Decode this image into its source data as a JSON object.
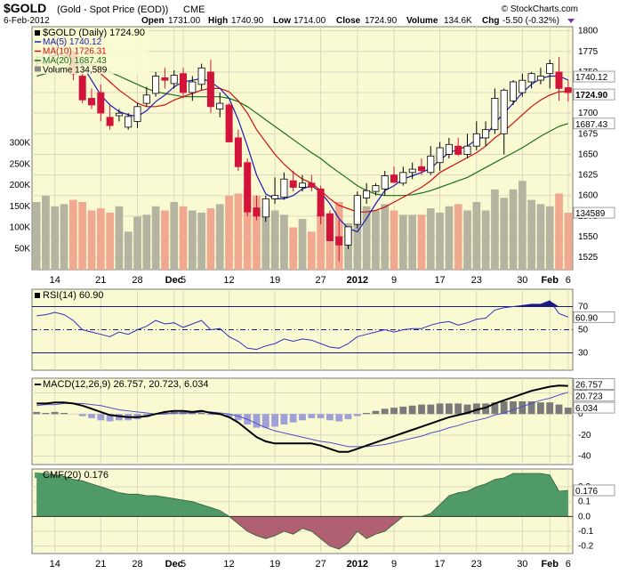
{
  "header": {
    "symbol": "$GOLD",
    "description": "(Gold - Spot Price (EOD))",
    "exchange": "CME",
    "copyright": "© StockCharts.com",
    "date": "6-Feb-2012",
    "ohlc_line": {
      "open_label": "Open",
      "open": "1731.00",
      "high_label": "High",
      "high": "1740.90",
      "low_label": "Low",
      "low": "1714.00",
      "close_label": "Close",
      "close": "1724.90",
      "volume_label": "Volume",
      "volume": "134.6K",
      "chg_label": "Chg",
      "chg": "-5.50 (-0.32%)"
    }
  },
  "colors": {
    "panel_bg": "#fafad2",
    "up": "#ffffff",
    "down": "#d2143a",
    "ma5": "#1a1ab4",
    "ma10": "#cc1111",
    "ma20": "#1a701a",
    "vol_up": "#b4b4a0",
    "vol_down": "#f0a890",
    "rsi": "#3030c0",
    "macd": "#000000",
    "signal": "#5050c8",
    "hist": "#7a7a7a",
    "hist_neg": "#a0a0d8",
    "cmf_pos": "#4f9a66",
    "cmf_neg": "#b06070"
  },
  "chart_data": [
    {
      "type": "candlestick",
      "title": "$GOLD (Daily) 1724.90",
      "x": [
        "Nov 10",
        "Nov 11",
        "Nov 14",
        "Nov 15",
        "Nov 16",
        "Nov 17",
        "Nov 18",
        "Nov 21",
        "Nov 22",
        "Nov 23",
        "Nov 25",
        "Nov 28",
        "Nov 29",
        "Nov 30",
        "Dec 1",
        "Dec 2",
        "Dec 5",
        "Dec 6",
        "Dec 7",
        "Dec 8",
        "Dec 9",
        "Dec 12",
        "Dec 13",
        "Dec 14",
        "Dec 15",
        "Dec 16",
        "Dec 19",
        "Dec 20",
        "Dec 21",
        "Dec 22",
        "Dec 23",
        "Dec 27",
        "Dec 28",
        "Dec 29",
        "Dec 30",
        "Jan 3",
        "Jan 4",
        "Jan 5",
        "Jan 6",
        "Jan 9",
        "Jan 10",
        "Jan 11",
        "Jan 12",
        "Jan 13",
        "Jan 17",
        "Jan 18",
        "Jan 19",
        "Jan 20",
        "Jan 23",
        "Jan 24",
        "Jan 25",
        "Jan 26",
        "Jan 27",
        "Jan 30",
        "Jan 31",
        "Feb 1",
        "Feb 2",
        "Feb 3",
        "Feb 6"
      ],
      "open": [
        1763,
        1760,
        1780,
        1770,
        1775,
        1745,
        1718,
        1725,
        1695,
        1697,
        1683,
        1690,
        1712,
        1724,
        1743,
        1736,
        1748,
        1725,
        1735,
        1750,
        1705,
        1710,
        1670,
        1640,
        1585,
        1574,
        1596,
        1598,
        1618,
        1610,
        1615,
        1608,
        1578,
        1550,
        1540,
        1565,
        1597,
        1605,
        1608,
        1625,
        1615,
        1628,
        1635,
        1628,
        1640,
        1650,
        1660,
        1650,
        1660,
        1670,
        1680,
        1675,
        1715,
        1725,
        1738,
        1740,
        1748,
        1750,
        1731
      ],
      "high": [
        1770,
        1775,
        1795,
        1790,
        1780,
        1752,
        1730,
        1735,
        1710,
        1705,
        1700,
        1712,
        1732,
        1750,
        1755,
        1752,
        1755,
        1745,
        1760,
        1765,
        1725,
        1712,
        1680,
        1645,
        1600,
        1600,
        1622,
        1628,
        1630,
        1625,
        1625,
        1612,
        1582,
        1570,
        1562,
        1605,
        1615,
        1615,
        1630,
        1635,
        1635,
        1640,
        1645,
        1660,
        1665,
        1670,
        1670,
        1675,
        1690,
        1690,
        1730,
        1730,
        1740,
        1748,
        1750,
        1755,
        1765,
        1768,
        1740
      ],
      "low": [
        1755,
        1758,
        1768,
        1762,
        1740,
        1712,
        1705,
        1690,
        1680,
        1690,
        1680,
        1682,
        1708,
        1720,
        1730,
        1730,
        1718,
        1715,
        1728,
        1700,
        1695,
        1665,
        1630,
        1575,
        1570,
        1568,
        1590,
        1595,
        1605,
        1605,
        1605,
        1565,
        1545,
        1520,
        1535,
        1560,
        1590,
        1600,
        1600,
        1615,
        1612,
        1620,
        1625,
        1625,
        1630,
        1645,
        1648,
        1645,
        1655,
        1660,
        1675,
        1650,
        1710,
        1720,
        1730,
        1735,
        1730,
        1715,
        1714
      ],
      "close": [
        1765,
        1774,
        1785,
        1777,
        1748,
        1716,
        1710,
        1700,
        1685,
        1700,
        1696,
        1708,
        1722,
        1745,
        1740,
        1746,
        1725,
        1738,
        1755,
        1708,
        1712,
        1665,
        1635,
        1580,
        1575,
        1596,
        1600,
        1620,
        1610,
        1615,
        1610,
        1575,
        1545,
        1540,
        1562,
        1600,
        1606,
        1612,
        1624,
        1616,
        1628,
        1632,
        1630,
        1648,
        1658,
        1662,
        1650,
        1660,
        1675,
        1680,
        1718,
        1728,
        1738,
        1740,
        1748,
        1745,
        1760,
        1730,
        1724.9
      ],
      "ma5": [
        1768,
        1768,
        1770,
        1772,
        1770,
        1758,
        1740,
        1722,
        1710,
        1702,
        1698,
        1696,
        1703,
        1714,
        1722,
        1732,
        1738,
        1740,
        1742,
        1738,
        1730,
        1718,
        1692,
        1660,
        1625,
        1602,
        1596,
        1596,
        1600,
        1608,
        1612,
        1604,
        1590,
        1572,
        1560,
        1556,
        1572,
        1590,
        1606,
        1612,
        1620,
        1624,
        1628,
        1633,
        1643,
        1652,
        1656,
        1660,
        1668,
        1672,
        1688,
        1700,
        1712,
        1725,
        1735,
        1742,
        1745,
        1745,
        1740.12
      ],
      "ma10": [
        1760,
        1762,
        1765,
        1768,
        1770,
        1768,
        1760,
        1748,
        1738,
        1728,
        1720,
        1712,
        1708,
        1708,
        1710,
        1716,
        1720,
        1724,
        1728,
        1730,
        1730,
        1726,
        1715,
        1700,
        1680,
        1665,
        1650,
        1638,
        1628,
        1620,
        1615,
        1606,
        1596,
        1588,
        1584,
        1580,
        1580,
        1582,
        1586,
        1592,
        1598,
        1604,
        1610,
        1618,
        1628,
        1634,
        1640,
        1646,
        1652,
        1660,
        1670,
        1678,
        1688,
        1698,
        1708,
        1716,
        1722,
        1726,
        1726.31
      ],
      "ma20": [
        1745,
        1748,
        1752,
        1755,
        1758,
        1760,
        1758,
        1755,
        1750,
        1745,
        1740,
        1735,
        1730,
        1726,
        1724,
        1722,
        1720,
        1720,
        1720,
        1720,
        1720,
        1718,
        1714,
        1708,
        1700,
        1692,
        1684,
        1676,
        1668,
        1660,
        1652,
        1645,
        1636,
        1628,
        1620,
        1612,
        1606,
        1602,
        1600,
        1600,
        1600,
        1601,
        1603,
        1606,
        1610,
        1614,
        1618,
        1622,
        1628,
        1634,
        1640,
        1646,
        1652,
        1658,
        1665,
        1672,
        1678,
        1684,
        1687.43
      ],
      "volume": [
        160,
        175,
        150,
        155,
        165,
        160,
        140,
        145,
        135,
        150,
        90,
        125,
        130,
        150,
        140,
        160,
        150,
        140,
        135,
        145,
        155,
        175,
        180,
        190,
        175,
        150,
        140,
        130,
        100,
        120,
        90,
        135,
        130,
        160,
        110,
        165,
        150,
        140,
        155,
        140,
        130,
        130,
        130,
        145,
        135,
        150,
        155,
        140,
        160,
        140,
        190,
        170,
        190,
        210,
        165,
        155,
        150,
        180,
        134.589
      ],
      "legend": [
        "MA(5) 1740.12",
        "MA(10) 1726.31",
        "MA(20) 1687.43",
        "Volume 134,589"
      ],
      "y_ticks": [
        1525,
        1550,
        1575,
        1600,
        1625,
        1650,
        1675,
        1700,
        1725,
        1750,
        1775,
        1800
      ],
      "vol_ticks": [
        "50K",
        "100K",
        "150K",
        "200K",
        "250K",
        "300K"
      ],
      "last_values": [
        "1740.12",
        "1724.90",
        "1687.43",
        "134589"
      ],
      "ylim": [
        1510,
        1805
      ],
      "x_ticks": [
        {
          "label": "14",
          "i": 2
        },
        {
          "label": "21",
          "i": 7
        },
        {
          "label": "28",
          "i": 11
        },
        {
          "label": "Dec",
          "i": 15,
          "bold": true
        },
        {
          "label": "5",
          "i": 16
        },
        {
          "label": "12",
          "i": 21
        },
        {
          "label": "19",
          "i": 26
        },
        {
          "label": "27",
          "i": 31
        },
        {
          "label": "2012",
          "i": 35,
          "bold": true
        },
        {
          "label": "9",
          "i": 39
        },
        {
          "label": "17",
          "i": 44
        },
        {
          "label": "23",
          "i": 48
        },
        {
          "label": "30",
          "i": 53
        },
        {
          "label": "Feb",
          "i": 56,
          "bold": true
        },
        {
          "label": "6",
          "i": 58
        }
      ]
    },
    {
      "type": "line",
      "title": "RSI(14) 60.90",
      "values": [
        62,
        63,
        65,
        63,
        58,
        50,
        48,
        46,
        44,
        48,
        46,
        50,
        53,
        58,
        55,
        56,
        52,
        55,
        58,
        50,
        51,
        44,
        40,
        34,
        33,
        36,
        38,
        42,
        40,
        42,
        41,
        38,
        35,
        34,
        38,
        44,
        46,
        48,
        50,
        48,
        50,
        51,
        51,
        54,
        56,
        57,
        54,
        56,
        59,
        60,
        67,
        69,
        70,
        71,
        72,
        72,
        75,
        64,
        60.9
      ],
      "levels": [
        30,
        50,
        70
      ],
      "y_ticks": [
        30,
        50,
        70
      ],
      "last_value": "60.90",
      "ylim": [
        15,
        85
      ]
    },
    {
      "type": "line",
      "title": "MACD(12,26,9) 26.757, 20.723, 6.034",
      "macd": [
        10,
        10,
        11,
        11,
        10,
        8,
        5,
        2,
        -1,
        -2,
        -3,
        -3,
        -2,
        0,
        2,
        3,
        3,
        2,
        3,
        1,
        0,
        -3,
        -8,
        -15,
        -22,
        -26,
        -28,
        -28,
        -28,
        -28,
        -28,
        -30,
        -33,
        -36,
        -36,
        -33,
        -30,
        -27,
        -24,
        -21,
        -18,
        -15,
        -12,
        -9,
        -6,
        -3,
        -1,
        1,
        4,
        6,
        10,
        13,
        16,
        19,
        22,
        24,
        26,
        27,
        26.757
      ],
      "signal": [
        8,
        9,
        9,
        10,
        10,
        10,
        9,
        8,
        6,
        4,
        3,
        2,
        1,
        0,
        0,
        1,
        1,
        1,
        2,
        2,
        1,
        0,
        -2,
        -5,
        -9,
        -13,
        -16,
        -18,
        -20,
        -22,
        -24,
        -26,
        -27,
        -29,
        -31,
        -31,
        -31,
        -30,
        -29,
        -27,
        -25,
        -23,
        -21,
        -18,
        -16,
        -13,
        -11,
        -8,
        -6,
        -4,
        -1,
        1,
        4,
        7,
        10,
        13,
        15,
        18,
        20.723
      ],
      "histogram": [
        2,
        1,
        2,
        1,
        0,
        -2,
        -4,
        -6,
        -7,
        -6,
        -6,
        -5,
        -3,
        0,
        2,
        2,
        2,
        1,
        1,
        -1,
        -1,
        -3,
        -6,
        -10,
        -13,
        -13,
        -12,
        -10,
        -8,
        -6,
        -4,
        -4,
        -6,
        -7,
        -5,
        -2,
        1,
        3,
        5,
        6,
        7,
        8,
        9,
        9,
        10,
        10,
        10,
        9,
        10,
        10,
        11,
        12,
        12,
        12,
        12,
        11,
        11,
        9,
        6.034
      ],
      "y_ticks": [
        -40,
        -20,
        0,
        20
      ],
      "last_values": [
        "26.757",
        "20.723",
        "6.034"
      ],
      "ylim": [
        -48,
        34
      ]
    },
    {
      "type": "area",
      "title": "CMF(20) 0.176",
      "values": [
        0.29,
        0.29,
        0.28,
        0.27,
        0.25,
        0.24,
        0.22,
        0.2,
        0.18,
        0.16,
        0.15,
        0.15,
        0.14,
        0.14,
        0.13,
        0.12,
        0.11,
        0.1,
        0.08,
        0.06,
        0.04,
        0.0,
        -0.05,
        -0.1,
        -0.13,
        -0.15,
        -0.13,
        -0.1,
        -0.12,
        -0.08,
        -0.1,
        -0.15,
        -0.2,
        -0.22,
        -0.18,
        -0.1,
        -0.15,
        -0.12,
        -0.1,
        -0.05,
        0.0,
        0.0,
        0.0,
        0.02,
        0.08,
        0.14,
        0.16,
        0.17,
        0.2,
        0.22,
        0.25,
        0.26,
        0.29,
        0.29,
        0.29,
        0.29,
        0.28,
        0.17,
        0.176
      ],
      "y_ticks": [
        -0.2,
        -0.1,
        0.0,
        0.1,
        0.2
      ],
      "last_value": "0.176",
      "ylim": [
        -0.25,
        0.32
      ]
    }
  ]
}
